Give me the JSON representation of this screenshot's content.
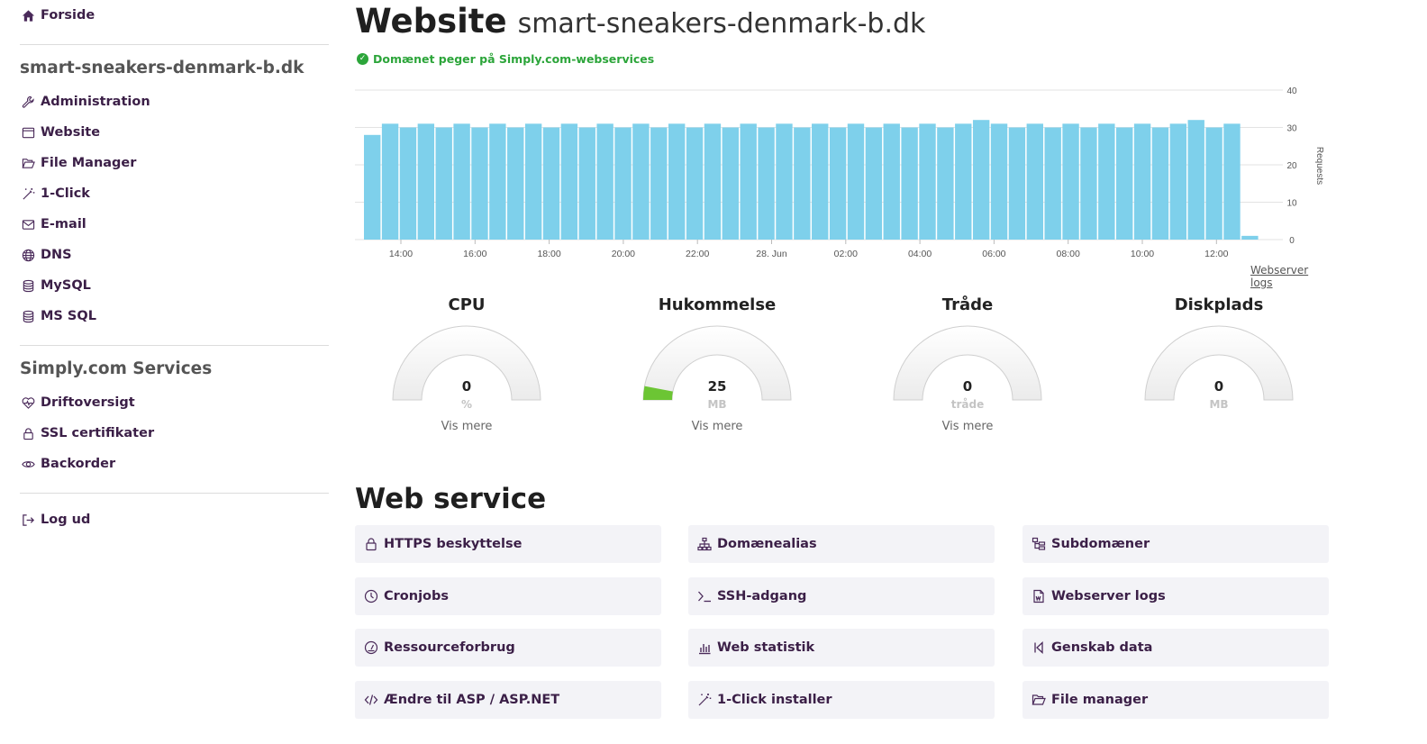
{
  "sidebar": {
    "home_label": "Forside",
    "domain_title": "smart-sneakers-denmark-b.dk",
    "items": [
      {
        "label": "Administration",
        "icon": "wrench-icon"
      },
      {
        "label": "Website",
        "icon": "browser-icon"
      },
      {
        "label": "File Manager",
        "icon": "folder-open-icon"
      },
      {
        "label": "1-Click",
        "icon": "magic-wand-icon"
      },
      {
        "label": "E-mail",
        "icon": "envelope-icon"
      },
      {
        "label": "DNS",
        "icon": "globe-icon"
      },
      {
        "label": "MySQL",
        "icon": "database-icon"
      },
      {
        "label": "MS SQL",
        "icon": "database-icon"
      }
    ],
    "services_title": "Simply.com Services",
    "services": [
      {
        "label": "Driftoversigt",
        "icon": "heartbeat-icon"
      },
      {
        "label": "SSL certifikater",
        "icon": "lock-icon"
      },
      {
        "label": "Backorder",
        "icon": "eye-icon"
      }
    ],
    "logout_label": "Log ud"
  },
  "header": {
    "title": "Website",
    "domain": "smart-sneakers-denmark-b.dk",
    "status_text": "Domænet peger på Simply.com-webservices"
  },
  "chart_data": {
    "type": "bar",
    "ylabel": "Requests",
    "ylim": [
      0,
      40
    ],
    "yticks": [
      0,
      10,
      20,
      30,
      40
    ],
    "xtick_labels": [
      "14:00",
      "16:00",
      "18:00",
      "20:00",
      "22:00",
      "28. Jun",
      "02:00",
      "04:00",
      "06:00",
      "08:00",
      "10:00",
      "12:00"
    ],
    "values": [
      28,
      31,
      30,
      31,
      30,
      31,
      30,
      31,
      30,
      31,
      30,
      31,
      30,
      31,
      30,
      31,
      30,
      31,
      30,
      31,
      30,
      31,
      30,
      31,
      30,
      31,
      30,
      31,
      30,
      31,
      30,
      31,
      30,
      31,
      32,
      31,
      30,
      31,
      30,
      31,
      30,
      31,
      30,
      31,
      30,
      31,
      32,
      30,
      31,
      1
    ],
    "color": "#7ed0eb"
  },
  "chart_link": "Webserver logs",
  "gauges": [
    {
      "title": "CPU",
      "value": "0",
      "unit": "%",
      "more": "Vis mere",
      "fraction": 0
    },
    {
      "title": "Hukommelse",
      "value": "25",
      "unit": "MB",
      "more": "Vis mere",
      "fraction": 0.06
    },
    {
      "title": "Tråde",
      "value": "0",
      "unit": "tråde",
      "more": "Vis mere",
      "fraction": 0
    },
    {
      "title": "Diskplads",
      "value": "0",
      "unit": "MB",
      "more": "",
      "fraction": 0
    }
  ],
  "gauge_fill_color": "#6cc534",
  "web_service": {
    "title": "Web service",
    "cards": [
      {
        "label": "HTTPS beskyttelse",
        "icon": "lock-icon"
      },
      {
        "label": "Domænealias",
        "icon": "sitemap-icon"
      },
      {
        "label": "Subdomæner",
        "icon": "subdomain-icon"
      },
      {
        "label": "Cronjobs",
        "icon": "clock-icon"
      },
      {
        "label": "SSH-adgang",
        "icon": "terminal-icon"
      },
      {
        "label": "Webserver logs",
        "icon": "file-icon"
      },
      {
        "label": "Ressourceforbrug",
        "icon": "speedometer-icon"
      },
      {
        "label": "Web statistik",
        "icon": "bar-chart-icon"
      },
      {
        "label": "Genskab data",
        "icon": "step-back-icon"
      },
      {
        "label": "Ændre til ASP / ASP.NET",
        "icon": "code-icon"
      },
      {
        "label": "1-Click installer",
        "icon": "magic-wand-icon"
      },
      {
        "label": "File manager",
        "icon": "folder-open-icon"
      }
    ]
  }
}
